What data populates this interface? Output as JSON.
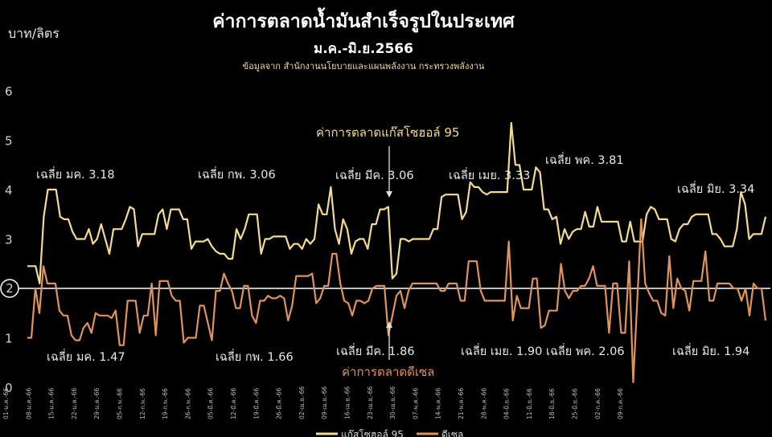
{
  "chart_data": {
    "type": "line",
    "title": "ค่าการตลาดน้ำมันสำเร็จรูปในประเทศ",
    "subtitle": "ม.ค.-มิ.ย.2566",
    "source": "ข้อมูลจาก สำนักงานนโยบายและแผนพลังงาน กระทรวงพลังงาน",
    "ylabel": "บาท/ลิตร",
    "ylim": [
      0,
      6
    ],
    "yticks": [
      "0",
      "1",
      "2",
      "3",
      "4",
      "5",
      "6"
    ],
    "reference_line": 2,
    "reference_label": "2",
    "x_tick_labels": [
      "01-ม.ค.-66",
      "08-ม.ค.-66",
      "15-ม.ค.-66",
      "22-ม.ค.-66",
      "29-ม.ค.-66",
      "05-ก.พ.-66",
      "12-ก.พ.-66",
      "19-ก.พ.-66",
      "26-ก.พ.-66",
      "05-มี.ค.-66",
      "12-มี.ค.-66",
      "19-มี.ค.-66",
      "26-มี.ค.-66",
      "02-เม.ย.-66",
      "09-เม.ย.-66",
      "16-เม.ย.-66",
      "23-เม.ย.-66",
      "30-เม.ย.-66",
      "07-พ.ค.-66",
      "14-พ.ค.-66",
      "21-พ.ค.-66",
      "28-พ.ค.-66",
      "04-มิ.ย.-66",
      "11-มิ.ย.-66",
      "18-มิ.ย.-66",
      "25-มิ.ย.-66",
      "02-ก.ค.-66",
      "09-ก.ค.-66"
    ],
    "x_start": "01-ม.ค.-66",
    "x_end": "12-ก.ค.-66",
    "series": [
      {
        "name": "แก๊สโซฮอล์ 95",
        "color": "#f3dc8f",
        "values": [
          2.45,
          2.45,
          2.45,
          2.1,
          3.45,
          4.0,
          4.0,
          4.0,
          3.45,
          3.4,
          3.4,
          3.15,
          3.0,
          3.0,
          3.0,
          3.2,
          2.9,
          3.0,
          3.3,
          3.0,
          2.7,
          3.2,
          3.2,
          3.2,
          3.4,
          3.65,
          3.6,
          2.85,
          3.1,
          3.1,
          3.1,
          3.1,
          3.5,
          3.6,
          3.2,
          3.6,
          3.6,
          3.6,
          3.4,
          3.4,
          2.8,
          2.95,
          2.95,
          2.95,
          3.0,
          2.85,
          2.75,
          2.7,
          2.7,
          2.6,
          2.6,
          3.2,
          3.0,
          3.2,
          3.5,
          3.5,
          3.5,
          2.7,
          3.0,
          3.0,
          3.05,
          3.05,
          3.05,
          3.05,
          2.8,
          2.9,
          2.9,
          2.8,
          3.0,
          2.9,
          3.0,
          3.7,
          3.5,
          3.5,
          4.05,
          3.2,
          2.9,
          3.4,
          3.2,
          2.7,
          2.95,
          3.0,
          3.0,
          2.8,
          3.3,
          3.3,
          3.6,
          3.6,
          3.65,
          2.2,
          2.3,
          3.0,
          3.0,
          2.95,
          3.0,
          3.0,
          3.0,
          3.0,
          3.0,
          3.2,
          3.2,
          3.85,
          3.9,
          3.9,
          3.9,
          3.9,
          3.4,
          3.55,
          4.15,
          4.05,
          4.05,
          3.95,
          3.9,
          3.95,
          3.95,
          3.95,
          3.95,
          3.95,
          5.35,
          4.5,
          4.5,
          4.0,
          4.0,
          4.0,
          4.45,
          4.35,
          3.6,
          3.6,
          3.4,
          3.45,
          2.9,
          3.2,
          3.0,
          3.15,
          3.2,
          3.2,
          3.55,
          3.25,
          3.25,
          3.65,
          3.35,
          3.35,
          3.35,
          3.35,
          3.35,
          2.95,
          2.95,
          3.35,
          2.95,
          2.95,
          2.95,
          3.5,
          3.65,
          3.6,
          3.4,
          3.4,
          3.4,
          3.0,
          2.95,
          3.2,
          3.3,
          3.3,
          3.45,
          3.5,
          3.5,
          3.5,
          3.5,
          3.1,
          3.1,
          3.0,
          2.85,
          2.85,
          2.85,
          3.2,
          3.95,
          3.7,
          3.0,
          3.1,
          3.1,
          3.1,
          3.45
        ]
      },
      {
        "name": "ดีเซล",
        "color": "#e0935a",
        "values": [
          1.0,
          1.0,
          2.0,
          1.5,
          2.45,
          2.1,
          2.1,
          2.1,
          1.55,
          1.45,
          1.45,
          1.05,
          0.95,
          0.95,
          1.2,
          1.3,
          1.1,
          1.5,
          1.45,
          1.45,
          1.45,
          1.4,
          1.55,
          0.85,
          0.85,
          1.75,
          1.75,
          1.75,
          1.1,
          1.45,
          1.45,
          2.1,
          1.05,
          2.15,
          2.15,
          2.15,
          1.85,
          1.75,
          1.75,
          0.9,
          1.0,
          1.0,
          1.0,
          1.65,
          1.65,
          1.3,
          0.95,
          1.95,
          1.95,
          2.3,
          2.1,
          1.95,
          1.6,
          1.6,
          2.05,
          2.05,
          1.45,
          1.3,
          1.75,
          1.75,
          1.85,
          1.8,
          1.8,
          1.85,
          1.8,
          1.35,
          1.65,
          2.25,
          2.25,
          2.25,
          2.25,
          2.3,
          1.7,
          1.8,
          2.05,
          2.05,
          2.7,
          2.7,
          2.1,
          1.75,
          1.7,
          1.45,
          1.75,
          1.75,
          1.7,
          1.75,
          2.0,
          2.05,
          2.05,
          2.05,
          1.05,
          1.45,
          1.85,
          1.95,
          1.6,
          1.95,
          2.1,
          2.1,
          2.1,
          2.1,
          2.1,
          2.1,
          2.1,
          1.95,
          1.95,
          2.1,
          2.1,
          2.1,
          1.75,
          1.75,
          2.55,
          2.55,
          2.55,
          1.95,
          1.75,
          1.75,
          1.75,
          1.75,
          1.75,
          1.75,
          2.95,
          1.35,
          1.85,
          1.6,
          1.6,
          1.6,
          2.2,
          2.2,
          1.2,
          1.25,
          1.55,
          1.55,
          1.55,
          2.5,
          1.95,
          1.8,
          1.95,
          1.95,
          2.05,
          2.05,
          2.2,
          2.45,
          2.05,
          2.05,
          2.05,
          1.1,
          2.1,
          2.1,
          1.1,
          1.1,
          2.55,
          0.1,
          1.7,
          3.4,
          2.1,
          1.9,
          1.75,
          1.75,
          1.5,
          1.45,
          2.65,
          1.6,
          2.2,
          2.0,
          1.95,
          1.55,
          2.15,
          2.15,
          2.15,
          2.75,
          1.75,
          1.75,
          2.1,
          2.1,
          2.1,
          2.1,
          2.0,
          2.0,
          1.75,
          2.0,
          1.45,
          2.1,
          2.0,
          2.0,
          1.35
        ]
      }
    ],
    "annotations_gasohol": [
      "เฉลี่ย มค. 3.18",
      "เฉลี่ย กพ. 3.06",
      "เฉลี่ย มีค. 3.06",
      "เฉลี่ย เมย. 3.33",
      "เฉลี่ย พค. 3.81",
      "เฉลี่ย มิย. 3.34"
    ],
    "annotations_diesel": [
      "เฉลี่ย มค. 1.47",
      "เฉลี่ย กพ. 1.66",
      "เฉลี่ย มีค. 1.86",
      "เฉลี่ย เมย. 1.90",
      "เฉลี่ย พค. 2.06",
      "เฉลี่ย มิย. 1.94"
    ],
    "callout_gasohol": "ค่าการตลาดแก๊สโซฮอล์ 95",
    "callout_diesel": "ค่าการตลาดดีเซล",
    "legend": {
      "placement": "bottom-center"
    }
  }
}
